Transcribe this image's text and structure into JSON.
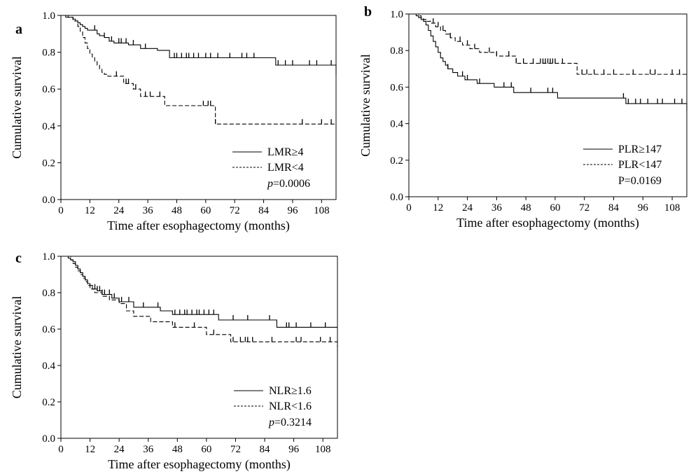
{
  "chart_data": [
    {
      "panel_label": "a",
      "type": "line",
      "step": true,
      "xlabel": "Time after esophagectomy (months)",
      "ylabel": "Cumulative survival",
      "xlim": [
        0,
        114
      ],
      "ylim": [
        0,
        1.0
      ],
      "x_ticks": [
        "0",
        "12",
        "24",
        "36",
        "48",
        "60",
        "72",
        "84",
        "96",
        "108"
      ],
      "y_ticks": [
        "0.0",
        "0.2",
        "0.4",
        "0.6",
        "0.8",
        "1.0"
      ],
      "legend_position": "bottom-right",
      "p_prefix": "p",
      "p_italic": true,
      "p_suffix": "=0.0006",
      "series": [
        {
          "name": "LMR≥4",
          "line_style": "solid",
          "x": [
            0,
            2,
            4,
            5,
            6,
            7,
            8,
            9,
            10,
            11,
            13,
            15,
            16,
            18,
            20,
            22,
            28,
            33,
            40,
            45,
            89,
            114
          ],
          "y": [
            1.0,
            0.99,
            0.99,
            0.98,
            0.97,
            0.96,
            0.95,
            0.94,
            0.93,
            0.92,
            0.92,
            0.9,
            0.89,
            0.88,
            0.86,
            0.85,
            0.84,
            0.82,
            0.81,
            0.77,
            0.73,
            0.68
          ],
          "censor_x": [
            14,
            18,
            21,
            24,
            25,
            27,
            30,
            35,
            47,
            48,
            50,
            52,
            53,
            55,
            57,
            60,
            62,
            65,
            70,
            75,
            77,
            80,
            90,
            93,
            96,
            103,
            106,
            112
          ]
        },
        {
          "name": "LMR<4",
          "line_style": "dashed",
          "x": [
            0,
            3,
            5,
            7,
            8,
            9,
            10,
            11,
            12,
            13,
            14,
            15,
            16,
            17,
            18,
            19,
            26,
            30,
            33,
            43,
            64,
            114
          ],
          "y": [
            1.0,
            0.99,
            0.97,
            0.94,
            0.91,
            0.88,
            0.85,
            0.82,
            0.79,
            0.77,
            0.75,
            0.73,
            0.71,
            0.69,
            0.68,
            0.67,
            0.63,
            0.6,
            0.56,
            0.51,
            0.41,
            0.41
          ],
          "censor_x": [
            23,
            27,
            28,
            31,
            35,
            37,
            41,
            59,
            61,
            62,
            64,
            100,
            108,
            112
          ]
        }
      ]
    },
    {
      "panel_label": "b",
      "type": "line",
      "step": true,
      "xlabel": "Time after esophagectomy (months)",
      "ylabel": "Cumulative survival",
      "xlim": [
        0,
        114
      ],
      "ylim": [
        0,
        1.0
      ],
      "x_ticks": [
        "0",
        "12",
        "24",
        "36",
        "48",
        "60",
        "72",
        "84",
        "96",
        "108"
      ],
      "y_ticks": [
        "0.0",
        "0.2",
        "0.4",
        "0.6",
        "0.8",
        "1.0"
      ],
      "legend_position": "bottom-right",
      "p_prefix": "P",
      "p_italic": false,
      "p_suffix": "=0.0169",
      "series": [
        {
          "name": "PLR≥147",
          "line_style": "solid",
          "x": [
            0,
            3,
            4,
            5,
            6,
            7,
            8,
            9,
            10,
            11,
            12,
            13,
            14,
            15,
            16,
            18,
            20,
            23,
            28,
            35,
            43,
            61,
            89,
            114
          ],
          "y": [
            1.0,
            0.99,
            0.98,
            0.97,
            0.96,
            0.94,
            0.91,
            0.88,
            0.85,
            0.82,
            0.79,
            0.76,
            0.74,
            0.72,
            0.7,
            0.68,
            0.66,
            0.64,
            0.62,
            0.6,
            0.57,
            0.54,
            0.51,
            0.47
          ],
          "censor_x": [
            16,
            22,
            24,
            29,
            39,
            42,
            50,
            57,
            59,
            88,
            90,
            93,
            95,
            98,
            102,
            104,
            109,
            112
          ]
        },
        {
          "name": "PLR<147",
          "line_style": "dashed",
          "x": [
            0,
            4,
            5,
            6,
            7,
            9,
            11,
            13,
            15,
            17,
            19,
            22,
            25,
            29,
            36,
            44,
            69,
            114
          ],
          "y": [
            1.0,
            0.99,
            0.98,
            0.97,
            0.96,
            0.95,
            0.93,
            0.91,
            0.89,
            0.87,
            0.85,
            0.83,
            0.81,
            0.79,
            0.77,
            0.73,
            0.67,
            0.67
          ],
          "censor_x": [
            10,
            12,
            14,
            17,
            21,
            24,
            27,
            33,
            36,
            41,
            44,
            47,
            51,
            54,
            55,
            56,
            57,
            58,
            59,
            60,
            63,
            71,
            73,
            76,
            80,
            84,
            92,
            99,
            101,
            108,
            111
          ]
        }
      ]
    },
    {
      "panel_label": "c",
      "type": "line",
      "step": true,
      "xlabel": "Time after esophagectomy (months)",
      "ylabel": "Cumulative survival",
      "xlim": [
        0,
        114
      ],
      "ylim": [
        0,
        1.0
      ],
      "x_ticks": [
        "0",
        "12",
        "24",
        "36",
        "48",
        "60",
        "72",
        "84",
        "96",
        "108"
      ],
      "y_ticks": [
        "0.0",
        "0.2",
        "0.4",
        "0.6",
        "0.8",
        "1.0"
      ],
      "legend_position": "bottom-right",
      "p_prefix": "p",
      "p_italic": true,
      "p_suffix": "=0.3214",
      "series": [
        {
          "name": "NLR≥1.6",
          "line_style": "solid",
          "x": [
            0,
            3,
            4,
            5,
            6,
            7,
            8,
            9,
            10,
            11,
            12,
            13,
            15,
            17,
            21,
            24,
            30,
            41,
            46,
            65,
            89,
            114
          ],
          "y": [
            1.0,
            0.99,
            0.98,
            0.97,
            0.95,
            0.93,
            0.91,
            0.89,
            0.87,
            0.85,
            0.84,
            0.82,
            0.81,
            0.79,
            0.77,
            0.75,
            0.72,
            0.7,
            0.68,
            0.65,
            0.61,
            0.61
          ],
          "censor_x": [
            14,
            15,
            16,
            17,
            18,
            20,
            22,
            25,
            28,
            34,
            40,
            47,
            49,
            51,
            52,
            54,
            56,
            57,
            59,
            61,
            63,
            71,
            77,
            86,
            93,
            94,
            97,
            103,
            109
          ]
        },
        {
          "name": "NLR<1.6",
          "line_style": "dashed",
          "x": [
            0,
            4,
            5,
            6,
            7,
            8,
            9,
            10,
            11,
            12,
            14,
            17,
            20,
            24,
            27,
            30,
            37,
            46,
            60,
            70,
            114
          ],
          "y": [
            1.0,
            0.98,
            0.96,
            0.94,
            0.92,
            0.9,
            0.88,
            0.86,
            0.84,
            0.82,
            0.8,
            0.78,
            0.76,
            0.74,
            0.7,
            0.67,
            0.64,
            0.61,
            0.57,
            0.53,
            0.5
          ],
          "censor_x": [
            47,
            55,
            63,
            71,
            74,
            76,
            77,
            79,
            87,
            97,
            99,
            107,
            111
          ]
        }
      ]
    }
  ]
}
